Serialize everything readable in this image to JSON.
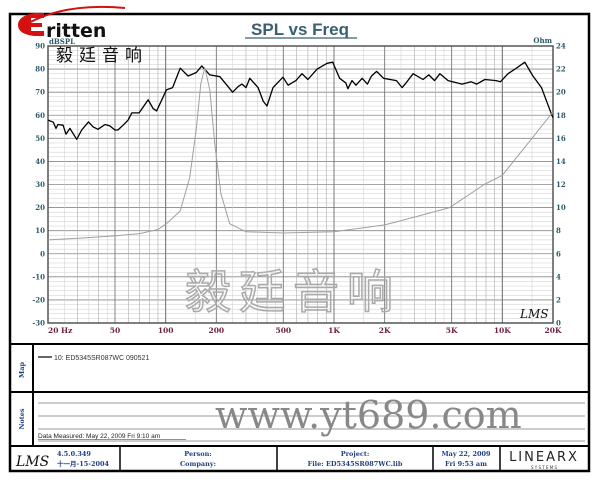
{
  "logo": {
    "brand_text": "ritten",
    "brand_chinese": "毅廷音响"
  },
  "watermark": {
    "chinese": "毅廷音响",
    "url": "www.yt689.com"
  },
  "chart_data": {
    "type": "line",
    "title": "SPL vs Freq",
    "xlabel": "",
    "x_scale": "log",
    "xlim": [
      20,
      20000
    ],
    "x_ticks": [
      {
        "v": 20,
        "label": "20  Hz"
      },
      {
        "v": 50,
        "label": "50"
      },
      {
        "v": 100,
        "label": "100"
      },
      {
        "v": 200,
        "label": "200"
      },
      {
        "v": 500,
        "label": "500"
      },
      {
        "v": 1000,
        "label": "1K"
      },
      {
        "v": 2000,
        "label": "2K"
      },
      {
        "v": 5000,
        "label": "5K"
      },
      {
        "v": 10000,
        "label": "10K"
      },
      {
        "v": 20000,
        "label": "20K"
      }
    ],
    "ylabel_left": "dBSPL",
    "ylim_left": [
      -30,
      90
    ],
    "y_ticks_left": [
      "90",
      "80",
      "70",
      "60",
      "50",
      "40",
      "30",
      "20",
      "10",
      "0",
      "-10",
      "-20",
      "-30"
    ],
    "ylabel_right": "Ohm",
    "ylim_right": [
      0,
      24
    ],
    "y_ticks_right": [
      "24",
      "22",
      "20",
      "18",
      "16",
      "14",
      "12",
      "10",
      "8",
      "6",
      "4",
      "2",
      "0"
    ],
    "grid": true,
    "series": [
      {
        "name": "10: ED5345SR087WC  090521",
        "axis": "left",
        "color": "#000000",
        "points": [
          [
            20,
            57.9
          ],
          [
            21.5,
            57
          ],
          [
            22.3,
            54.3
          ],
          [
            22.9,
            56
          ],
          [
            24.6,
            55.7
          ],
          [
            25.6,
            51.8
          ],
          [
            27,
            54.3
          ],
          [
            29.6,
            49.6
          ],
          [
            31.7,
            53.6
          ],
          [
            34.8,
            57.1
          ],
          [
            37,
            55
          ],
          [
            39.6,
            53.9
          ],
          [
            43.7,
            56
          ],
          [
            46.6,
            55.4
          ],
          [
            50,
            53.6
          ],
          [
            52,
            53.6
          ],
          [
            55.9,
            55.7
          ],
          [
            59.8,
            57.9
          ],
          [
            62.9,
            61
          ],
          [
            69.5,
            61
          ],
          [
            78.8,
            66.7
          ],
          [
            84.2,
            62.9
          ],
          [
            88.4,
            61.9
          ],
          [
            92.6,
            65
          ],
          [
            101,
            71
          ],
          [
            110,
            72
          ],
          [
            122,
            80.4
          ],
          [
            136,
            77
          ],
          [
            152,
            78.5
          ],
          [
            164,
            81.4
          ],
          [
            183,
            77.5
          ],
          [
            210,
            76.7
          ],
          [
            250,
            70
          ],
          [
            270,
            72.5
          ],
          [
            284,
            73.5
          ],
          [
            300,
            72
          ],
          [
            316,
            76
          ],
          [
            354,
            72
          ],
          [
            380,
            66
          ],
          [
            400,
            64
          ],
          [
            434,
            72
          ],
          [
            498,
            76.5
          ],
          [
            534,
            73
          ],
          [
            594,
            75
          ],
          [
            646,
            78
          ],
          [
            700,
            75.5
          ],
          [
            794,
            80
          ],
          [
            910,
            82.5
          ],
          [
            982,
            83
          ],
          [
            1080,
            76
          ],
          [
            1176,
            74
          ],
          [
            1210,
            71.5
          ],
          [
            1280,
            75
          ],
          [
            1350,
            73
          ],
          [
            1470,
            76
          ],
          [
            1580,
            73.5
          ],
          [
            1670,
            77
          ],
          [
            1790,
            79
          ],
          [
            1970,
            76
          ],
          [
            2350,
            75
          ],
          [
            2540,
            72
          ],
          [
            2680,
            74
          ],
          [
            2950,
            78
          ],
          [
            3380,
            75.5
          ],
          [
            3660,
            77.5
          ],
          [
            3960,
            75
          ],
          [
            4260,
            78
          ],
          [
            4760,
            75
          ],
          [
            5760,
            73.5
          ],
          [
            6540,
            74.5
          ],
          [
            7040,
            73.5
          ],
          [
            7880,
            75.5
          ],
          [
            9180,
            75
          ],
          [
            9740,
            74.5
          ],
          [
            10800,
            78
          ],
          [
            11900,
            80
          ],
          [
            13600,
            83
          ],
          [
            15200,
            77
          ],
          [
            17100,
            72
          ],
          [
            19700,
            60
          ],
          [
            20000,
            59
          ]
        ]
      },
      {
        "name": "impedance",
        "axis": "right",
        "color": "#a0a0a0",
        "points": [
          [
            20,
            7.2
          ],
          [
            30,
            7.35
          ],
          [
            50,
            7.55
          ],
          [
            70,
            7.75
          ],
          [
            90,
            8.1
          ],
          [
            101,
            8.6
          ],
          [
            122,
            9.7
          ],
          [
            139,
            12.6
          ],
          [
            152,
            16.8
          ],
          [
            162,
            20.8
          ],
          [
            171,
            22.1
          ],
          [
            183,
            20.2
          ],
          [
            196,
            15.4
          ],
          [
            213,
            11.2
          ],
          [
            240,
            8.6
          ],
          [
            300,
            7.9
          ],
          [
            500,
            7.8
          ],
          [
            1000,
            7.9
          ],
          [
            2000,
            8.5
          ],
          [
            2460,
            8.84
          ],
          [
            4870,
            10
          ],
          [
            7800,
            12
          ],
          [
            10000,
            12.8
          ],
          [
            15000,
            16
          ],
          [
            20000,
            18.3
          ]
        ]
      }
    ]
  },
  "chart_watermark": "LMS",
  "map": {
    "label": "Map",
    "legend_entry": "10: ED5345SR087WC   090521"
  },
  "notes": {
    "label": "Notes",
    "data_measured": "Data Measured: May 22, 2009  Fri 9:10 am"
  },
  "footer": {
    "lms_logo": "LMS",
    "version": "4.5.0.349",
    "version_date": "十一月-15-2004",
    "person": "Person:",
    "company": "Company:",
    "project": "Project:",
    "file": "File: ED5345SR087WC.lib",
    "date": "May 22, 2009",
    "time": "Fri  9:53 am",
    "brand": "LINEARX",
    "brand_sub": "S Y S T E M S"
  }
}
